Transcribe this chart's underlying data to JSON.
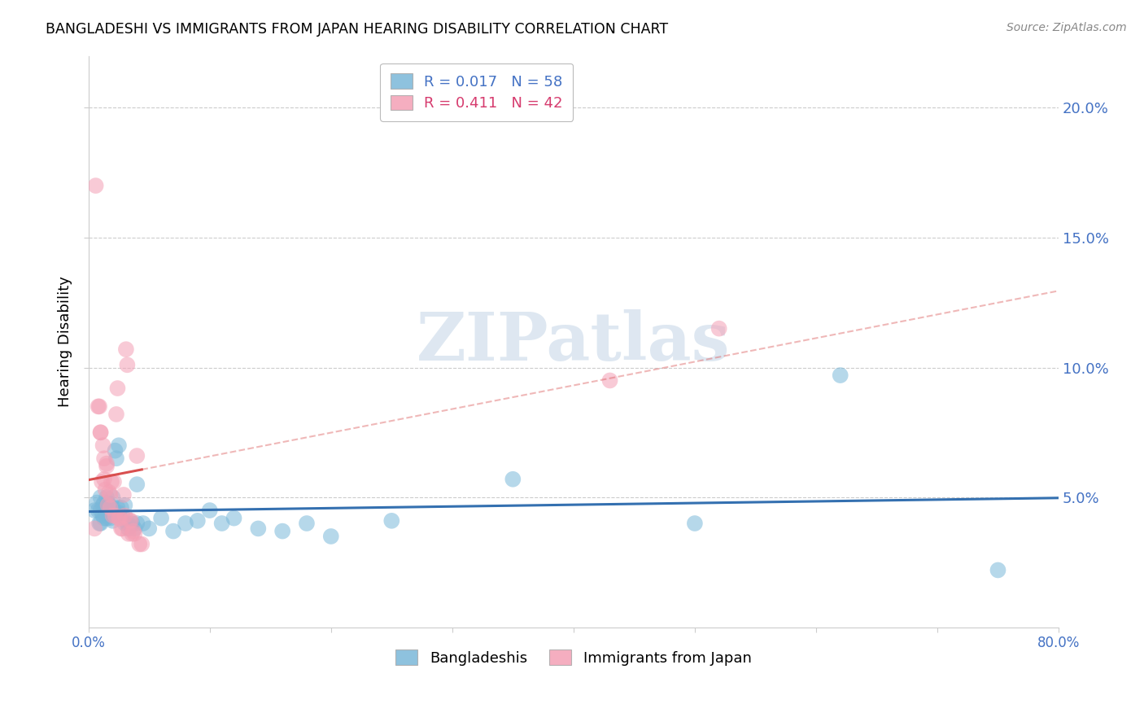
{
  "title": "BANGLADESHI VS IMMIGRANTS FROM JAPAN HEARING DISABILITY CORRELATION CHART",
  "source": "Source: ZipAtlas.com",
  "ylabel": "Hearing Disability",
  "xlim": [
    0.0,
    0.8
  ],
  "ylim": [
    0.0,
    0.22
  ],
  "yticks": [
    0.05,
    0.1,
    0.15,
    0.2
  ],
  "ytick_labels": [
    "5.0%",
    "10.0%",
    "15.0%",
    "20.0%"
  ],
  "xticks": [
    0.0,
    0.1,
    0.2,
    0.3,
    0.4,
    0.5,
    0.6,
    0.7,
    0.8
  ],
  "xtick_labels": [
    "0.0%",
    "",
    "",
    "",
    "",
    "",
    "",
    "",
    "80.0%"
  ],
  "blue_R": 0.017,
  "blue_N": 58,
  "pink_R": 0.411,
  "pink_N": 42,
  "blue_color": "#7ab8d9",
  "pink_color": "#f4a0b5",
  "trend_blue_color": "#3470b0",
  "trend_pink_color": "#d94f4f",
  "legend_label_blue": "Bangladeshis",
  "legend_label_pink": "Immigrants from Japan",
  "blue_points_x": [
    0.005,
    0.007,
    0.008,
    0.009,
    0.01,
    0.01,
    0.01,
    0.012,
    0.012,
    0.013,
    0.013,
    0.014,
    0.015,
    0.015,
    0.015,
    0.016,
    0.016,
    0.017,
    0.018,
    0.018,
    0.019,
    0.02,
    0.02,
    0.02,
    0.022,
    0.023,
    0.024,
    0.025,
    0.025,
    0.027,
    0.028,
    0.03,
    0.03,
    0.032,
    0.033,
    0.035,
    0.036,
    0.038,
    0.04,
    0.04,
    0.045,
    0.05,
    0.06,
    0.07,
    0.08,
    0.09,
    0.1,
    0.11,
    0.12,
    0.14,
    0.16,
    0.18,
    0.2,
    0.25,
    0.35,
    0.5,
    0.62,
    0.75
  ],
  "blue_points_y": [
    0.045,
    0.048,
    0.045,
    0.04,
    0.05,
    0.045,
    0.04,
    0.047,
    0.043,
    0.048,
    0.042,
    0.045,
    0.05,
    0.046,
    0.042,
    0.048,
    0.043,
    0.047,
    0.046,
    0.042,
    0.044,
    0.05,
    0.046,
    0.041,
    0.068,
    0.065,
    0.046,
    0.044,
    0.07,
    0.046,
    0.043,
    0.047,
    0.04,
    0.04,
    0.038,
    0.039,
    0.04,
    0.038,
    0.04,
    0.055,
    0.04,
    0.038,
    0.042,
    0.037,
    0.04,
    0.041,
    0.045,
    0.04,
    0.042,
    0.038,
    0.037,
    0.04,
    0.035,
    0.041,
    0.057,
    0.04,
    0.097,
    0.022
  ],
  "pink_points_x": [
    0.005,
    0.006,
    0.008,
    0.009,
    0.01,
    0.01,
    0.011,
    0.012,
    0.013,
    0.013,
    0.014,
    0.015,
    0.015,
    0.016,
    0.017,
    0.018,
    0.018,
    0.019,
    0.02,
    0.021,
    0.022,
    0.023,
    0.024,
    0.025,
    0.026,
    0.027,
    0.028,
    0.029,
    0.03,
    0.031,
    0.032,
    0.033,
    0.034,
    0.035,
    0.036,
    0.037,
    0.038,
    0.04,
    0.042,
    0.044,
    0.43,
    0.52
  ],
  "pink_points_y": [
    0.038,
    0.17,
    0.085,
    0.085,
    0.075,
    0.075,
    0.056,
    0.07,
    0.065,
    0.057,
    0.053,
    0.063,
    0.062,
    0.047,
    0.052,
    0.051,
    0.046,
    0.056,
    0.043,
    0.056,
    0.043,
    0.082,
    0.092,
    0.042,
    0.042,
    0.038,
    0.038,
    0.051,
    0.043,
    0.107,
    0.101,
    0.036,
    0.041,
    0.041,
    0.036,
    0.037,
    0.036,
    0.066,
    0.032,
    0.032,
    0.095,
    0.115
  ],
  "watermark_text": "ZIPatlas",
  "watermark_color": "#c8d8e8",
  "grid_color": "#cccccc"
}
